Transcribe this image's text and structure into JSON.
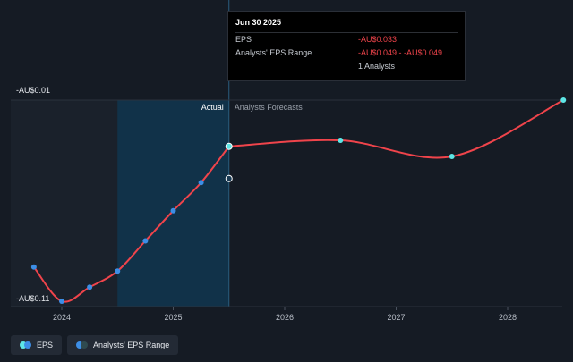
{
  "chart_data": {
    "type": "line",
    "title": "",
    "xlabel": "",
    "ylabel": "",
    "x_ticks": [
      "2024",
      "2025",
      "2026",
      "2027",
      "2028"
    ],
    "y_tick_labels": [
      "-AU$0.01",
      "-AU$0.11"
    ],
    "ylim": [
      -0.11,
      -0.01
    ],
    "regions": {
      "actual_label": "Actual",
      "forecast_label": "Analysts Forecasts"
    },
    "series": [
      {
        "name": "EPS",
        "color": "#f0444b",
        "actual_points": [
          {
            "x": 2023.75,
            "y": -0.093
          },
          {
            "x": 2024.0,
            "y": -0.11
          },
          {
            "x": 2024.25,
            "y": -0.103
          },
          {
            "x": 2024.5,
            "y": -0.095
          },
          {
            "x": 2024.75,
            "y": -0.08
          },
          {
            "x": 2025.0,
            "y": -0.065
          },
          {
            "x": 2025.25,
            "y": -0.051
          },
          {
            "x": 2025.5,
            "y": -0.033
          }
        ],
        "forecast_points": [
          {
            "x": 2025.5,
            "y": -0.033
          },
          {
            "x": 2026.5,
            "y": -0.03
          },
          {
            "x": 2027.5,
            "y": -0.038
          },
          {
            "x": 2028.5,
            "y": -0.01
          }
        ]
      },
      {
        "name": "Analysts' EPS Range",
        "points": [
          {
            "x": 2025.5,
            "y": -0.049
          }
        ]
      }
    ],
    "tooltip": {
      "date": "Jun 30 2025",
      "rows": [
        {
          "label": "EPS",
          "value": "-AU$0.033"
        },
        {
          "label": "Analysts' EPS Range",
          "value": "-AU$0.049 - -AU$0.049"
        }
      ],
      "analysts": "1 Analysts"
    },
    "legend": [
      {
        "label": "EPS",
        "colors": [
          "#5ee6e6",
          "#3d8ee6"
        ]
      },
      {
        "label": "Analysts' EPS Range",
        "colors": [
          "#3d8ee6",
          "#2f4a4f"
        ]
      }
    ],
    "colors": {
      "actual_marker": "#3d8ee6",
      "forecast_marker": "#5ee6e6",
      "shade": "#0e3a57"
    }
  }
}
